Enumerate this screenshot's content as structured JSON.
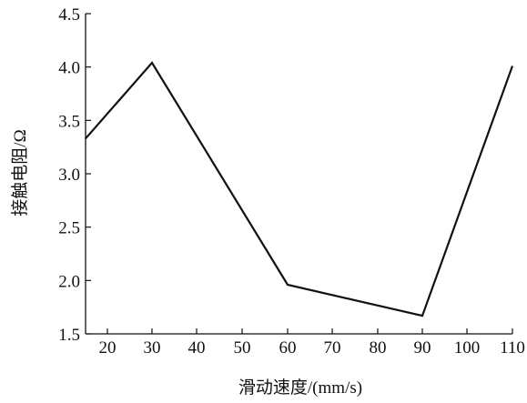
{
  "chart_data": {
    "type": "line",
    "title": "",
    "xlabel": "滑动速度/(mm/s)",
    "ylabel": "接触电阻/Ω",
    "categories": [
      "20",
      "30",
      "40",
      "50",
      "60",
      "70",
      "80",
      "90",
      "100",
      "110"
    ],
    "x_range": [
      "15",
      "110"
    ],
    "ylim": [
      1.5,
      4.5
    ],
    "y_ticks": [
      "1.5",
      "2.0",
      "2.5",
      "3.0",
      "3.5",
      "4.0",
      "4.5"
    ],
    "grid": false,
    "legend": "none",
    "series": [
      {
        "x": [
          15,
          30,
          60,
          90,
          110
        ],
        "y": [
          3.33,
          4.04,
          1.96,
          1.67,
          4.01
        ]
      }
    ],
    "line_color": "#111111",
    "axis_color": "#111111"
  }
}
